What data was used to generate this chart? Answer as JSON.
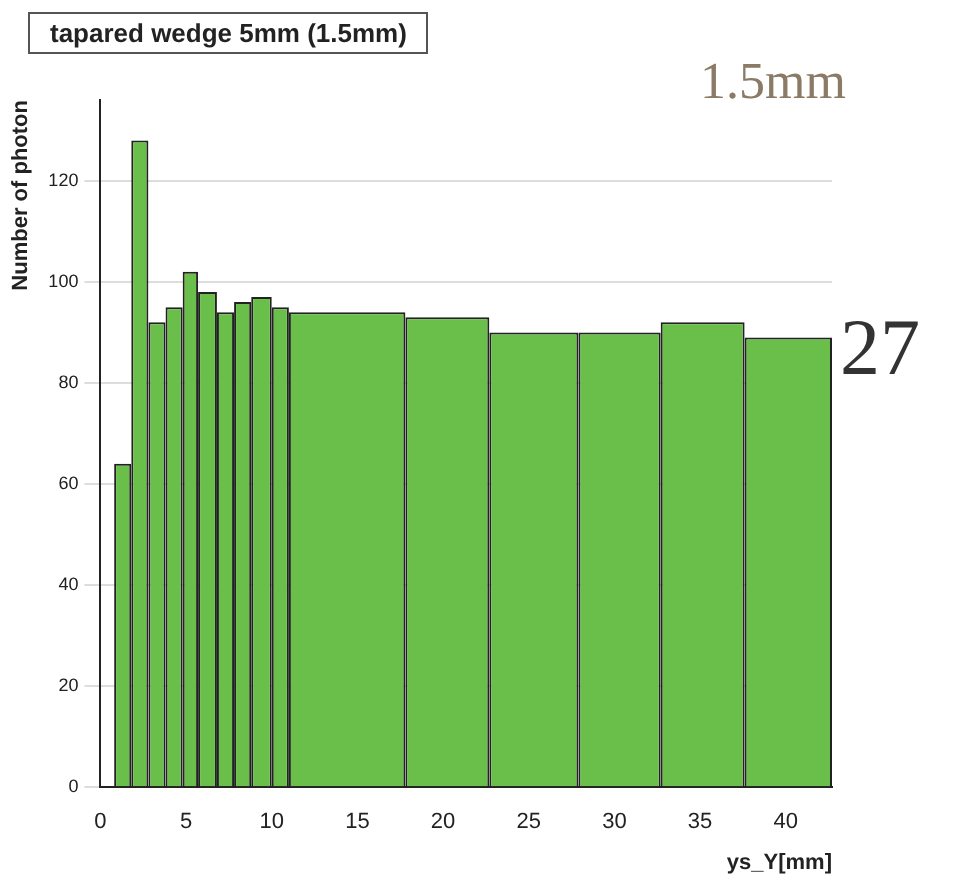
{
  "chart_data": {
    "type": "histogram",
    "title": "tapared wedge 5mm (1.5mm)",
    "xlabel": "ys_Y[mm]",
    "ylabel": "Number of photon",
    "bins": [
      0.8,
      1.8,
      2.8,
      3.8,
      4.8,
      5.7,
      6.8,
      7.8,
      8.8,
      10,
      11,
      17.8,
      22.7,
      27.9,
      32.7,
      37.6,
      42.7
    ],
    "values": [
      64,
      128,
      92,
      95,
      102,
      98,
      94,
      96,
      97,
      95,
      94,
      93,
      90,
      90,
      92,
      89
    ],
    "color": "#6abf4b",
    "xlim": [
      0,
      42.7
    ],
    "xticks": [
      0,
      5,
      10,
      15,
      20,
      25,
      30,
      35,
      40
    ],
    "ylim": [
      0,
      136
    ],
    "yticks": [
      0,
      20,
      40,
      60,
      80,
      100,
      120
    ],
    "grid": "y",
    "legend": false,
    "annotations": [
      "1.5mm",
      "27"
    ]
  }
}
